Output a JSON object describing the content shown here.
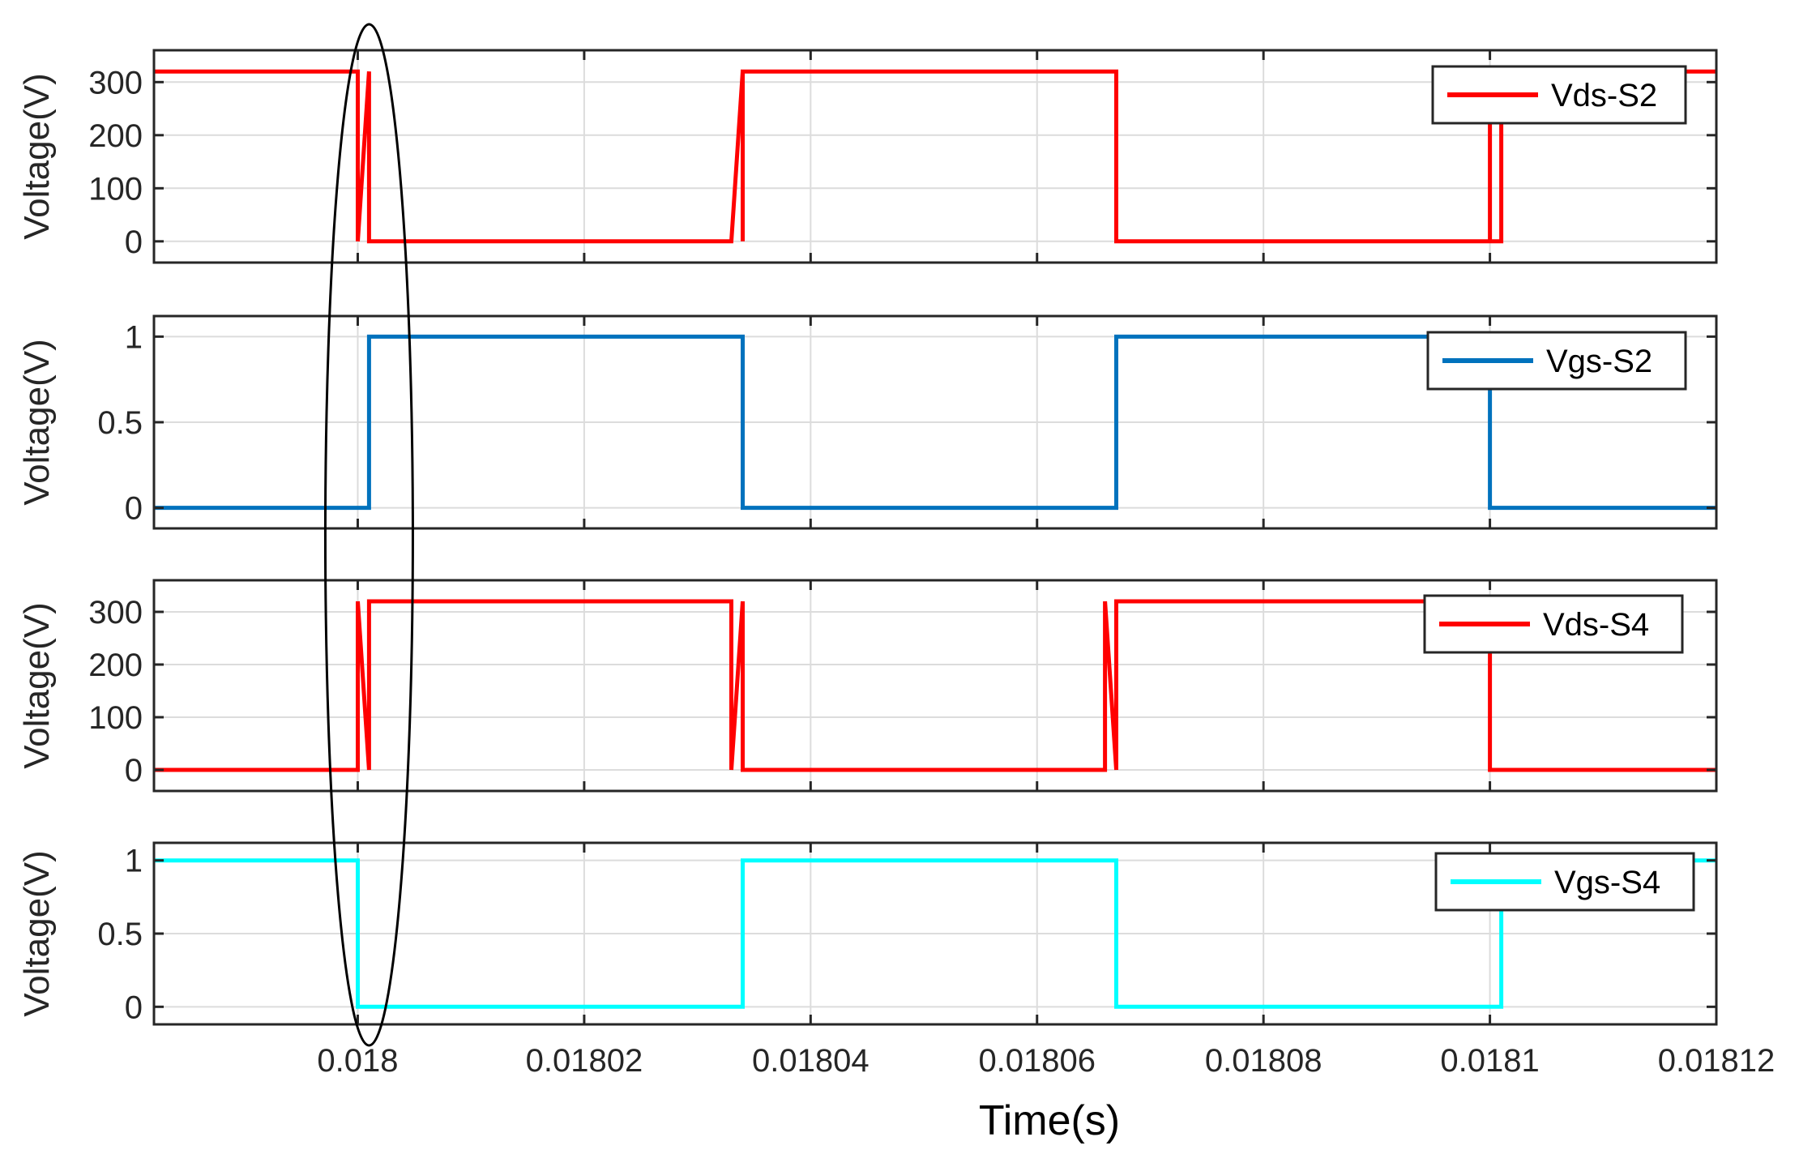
{
  "figure": {
    "xlabel": "Time(s)"
  },
  "chart_data": [
    {
      "type": "line",
      "ylabel": "Voltage(V)",
      "xlim": [
        0.017982,
        0.01812
      ],
      "ylim": [
        -40,
        360
      ],
      "xticks": [
        0.018,
        0.01802,
        0.01804,
        0.01806,
        0.01808,
        0.0181,
        0.01812
      ],
      "xtick_labels": [
        "0.018",
        "0.01802",
        "0.01804",
        "0.01806",
        "0.01808",
        "0.0181",
        "0.01812"
      ],
      "yticks": [
        0,
        100,
        200,
        300
      ],
      "ytick_labels": [
        "0",
        "100",
        "200",
        "300"
      ],
      "grid": true,
      "legend_position": "top-right",
      "series": [
        {
          "name": "Vds-S2",
          "color": "#ff0000",
          "x": [
            0.017982,
            0.018,
            0.018,
            0.018001,
            0.018001,
            0.018002,
            0.018002,
            0.018033,
            0.018034,
            0.018034,
            0.018034,
            0.018034,
            0.018067,
            0.018067,
            0.018067,
            0.018067,
            0.018068,
            0.018068,
            0.0181,
            0.0181,
            0.0181,
            0.018101,
            0.018101,
            0.01812
          ],
          "y": [
            320,
            320,
            0,
            320,
            0,
            0,
            0,
            0,
            320,
            320,
            0,
            320,
            320,
            0,
            320,
            0,
            0,
            0,
            0,
            320,
            0,
            0,
            320,
            320
          ]
        }
      ]
    },
    {
      "type": "line",
      "ylabel": "Voltage(V)",
      "xlim": [
        0.017982,
        0.01812
      ],
      "ylim": [
        -0.12,
        1.12
      ],
      "yticks": [
        0,
        0.5,
        1
      ],
      "ytick_labels": [
        "0",
        "0.5",
        "1"
      ],
      "grid": true,
      "legend_position": "top-right",
      "series": [
        {
          "name": "Vgs-S2",
          "color": "#0072bd",
          "x": [
            0.017982,
            0.018001,
            0.018001,
            0.018034,
            0.018034,
            0.018067,
            0.018067,
            0.0181,
            0.0181,
            0.01812
          ],
          "y": [
            0,
            0,
            1,
            1,
            0,
            0,
            1,
            1,
            0,
            0
          ]
        }
      ]
    },
    {
      "type": "line",
      "ylabel": "Voltage(V)",
      "xlim": [
        0.017982,
        0.01812
      ],
      "ylim": [
        -40,
        360
      ],
      "yticks": [
        0,
        100,
        200,
        300
      ],
      "ytick_labels": [
        "0",
        "100",
        "200",
        "300"
      ],
      "grid": true,
      "legend_position": "top-right",
      "series": [
        {
          "name": "Vds-S4",
          "color": "#ff0000",
          "x": [
            0.017982,
            0.018,
            0.018,
            0.018001,
            0.018001,
            0.018001,
            0.018033,
            0.018033,
            0.018034,
            0.018034,
            0.018066,
            0.018066,
            0.018067,
            0.018067,
            0.018067,
            0.0181,
            0.0181,
            0.0181,
            0.0181,
            0.018101,
            0.01812
          ],
          "y": [
            0,
            0,
            320,
            0,
            320,
            320,
            320,
            0,
            320,
            0,
            0,
            320,
            0,
            320,
            320,
            320,
            0,
            320,
            0,
            0,
            0
          ]
        }
      ]
    },
    {
      "type": "line",
      "ylabel": "Voltage(V)",
      "xlim": [
        0.017982,
        0.01812
      ],
      "ylim": [
        -0.12,
        1.12
      ],
      "yticks": [
        0,
        0.5,
        1
      ],
      "ytick_labels": [
        "0",
        "0.5",
        "1"
      ],
      "grid": true,
      "legend_position": "top-right",
      "series": [
        {
          "name": "Vgs-S4",
          "color": "#00ffff",
          "x": [
            0.017982,
            0.018,
            0.018,
            0.018034,
            0.018034,
            0.018067,
            0.018067,
            0.018101,
            0.018101,
            0.01812
          ],
          "y": [
            1,
            1,
            0,
            0,
            1,
            1,
            0,
            0,
            1,
            1
          ]
        }
      ]
    }
  ]
}
